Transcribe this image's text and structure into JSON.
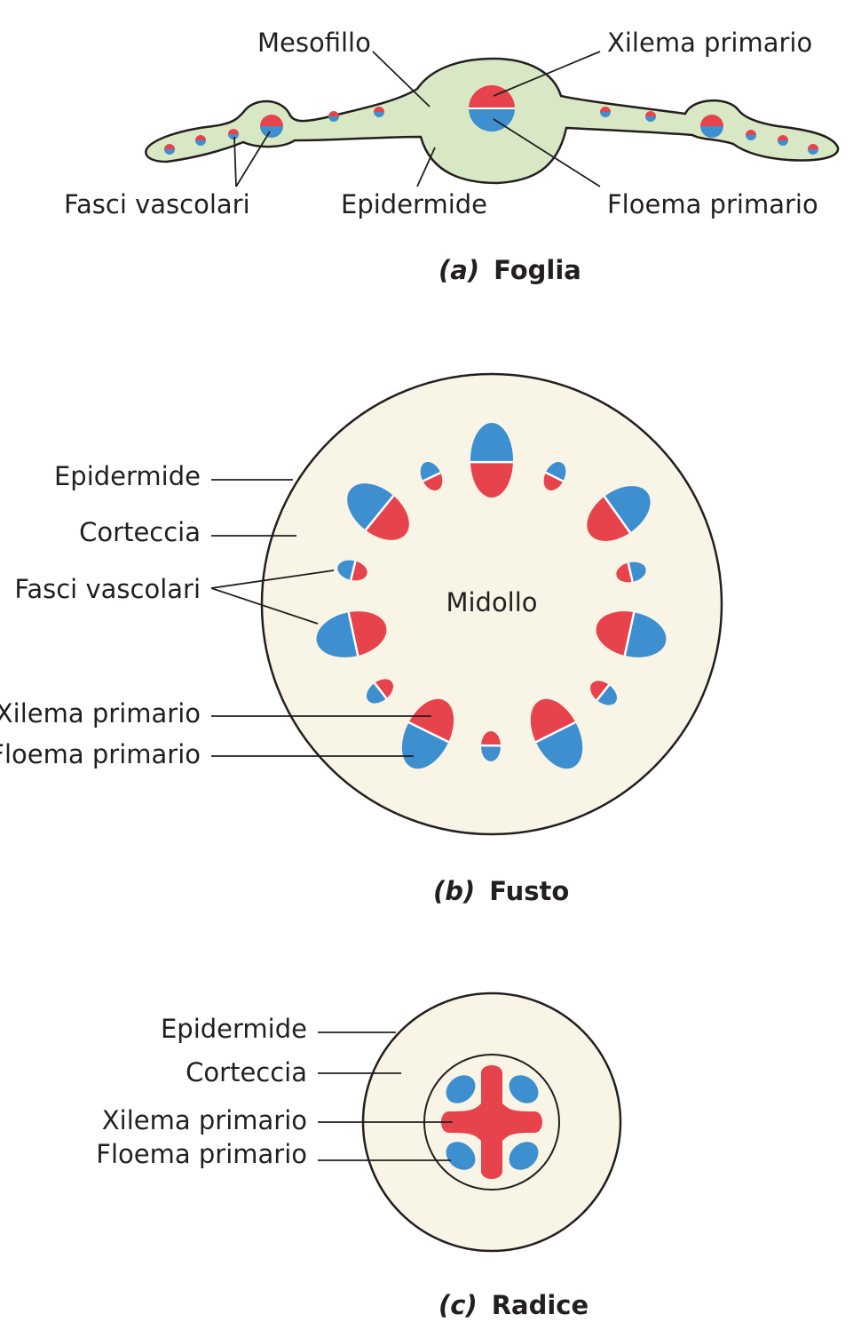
{
  "colors": {
    "leaf_fill": "#d9e8c4",
    "tissue_fill": "#f8f5e6",
    "xylem": "#e7434d",
    "phloem": "#3e8fd0",
    "line": "#231f20"
  },
  "leaf": {
    "caption_letter": "(a)",
    "caption_word": "Foglia",
    "labels": {
      "mesofillo": "Mesofillo",
      "xilema": "Xilema primario",
      "fasci": "Fasci vascolari",
      "epidermide": "Epidermide",
      "floema": "Floema primario"
    }
  },
  "stem": {
    "caption_letter": "(b)",
    "caption_word": "Fusto",
    "labels": {
      "epidermide": "Epidermide",
      "corteccia": "Corteccia",
      "fasci": "Fasci vascolari",
      "midollo": "Midollo",
      "xilema": "Xilema primario",
      "floema": "Floema primario"
    }
  },
  "root": {
    "caption_letter": "(c)",
    "caption_word": "Radice",
    "labels": {
      "epidermide": "Epidermide",
      "corteccia": "Corteccia",
      "xilema": "Xilema primario",
      "floema": "Floema primario"
    }
  }
}
